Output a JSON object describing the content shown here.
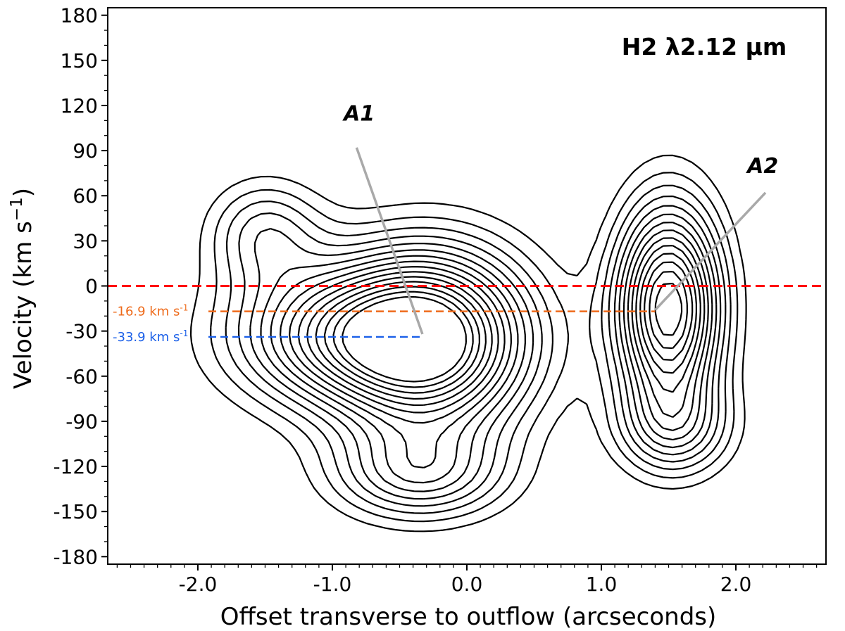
{
  "chart_data": {
    "type": "contour",
    "title": "H2 λ2.12 μm",
    "xlabel": "Offset transverse to outflow (arcseconds)",
    "ylabel_main": "Velocity (km s",
    "ylabel_exp": "−1",
    "ylabel_close": ")",
    "xlim": [
      -2.67,
      2.67
    ],
    "ylim": [
      -185,
      185
    ],
    "x_ticks": [
      {
        "value": -2.0,
        "label": "-2.0"
      },
      {
        "value": -1.0,
        "label": "-1.0"
      },
      {
        "value": 0.0,
        "label": "0.0"
      },
      {
        "value": 1.0,
        "label": "1.0"
      },
      {
        "value": 2.0,
        "label": "2.0"
      }
    ],
    "y_ticks": [
      {
        "value": 180,
        "label": "180"
      },
      {
        "value": 150,
        "label": "150"
      },
      {
        "value": 120,
        "label": "120"
      },
      {
        "value": 90,
        "label": "90"
      },
      {
        "value": 60,
        "label": "60"
      },
      {
        "value": 30,
        "label": "30"
      },
      {
        "value": 0,
        "label": "0"
      },
      {
        "value": -30,
        "label": "-30"
      },
      {
        "value": -60,
        "label": "-60"
      },
      {
        "value": -90,
        "label": "-90"
      },
      {
        "value": -120,
        "label": "-120"
      },
      {
        "value": -150,
        "label": "-150"
      },
      {
        "value": -180,
        "label": "-180"
      }
    ],
    "x_minor_step": 0.1,
    "y_minor_step": 10,
    "grid": false,
    "contour_levels": 15,
    "emission_peaks": [
      {
        "x": -0.28,
        "v": -36,
        "sx": 0.52,
        "sv": 42,
        "amp": 1.0
      },
      {
        "x": 1.5,
        "v": -15,
        "sx": 0.27,
        "sv": 48,
        "amp": 0.95
      },
      {
        "x": -1.05,
        "v": -33,
        "sx": 0.55,
        "sv": 32,
        "amp": 0.5
      },
      {
        "x": -1.5,
        "v": 35,
        "sx": 0.3,
        "sv": 25,
        "amp": 0.3
      },
      {
        "x": -0.35,
        "v": -125,
        "sx": 0.45,
        "sv": 22,
        "amp": 0.4
      },
      {
        "x": 1.55,
        "v": -95,
        "sx": 0.3,
        "sv": 22,
        "amp": 0.3
      }
    ],
    "reference_lines": [
      {
        "value": 0,
        "color": "#ff0000",
        "label": "",
        "x_end": 2.67
      },
      {
        "value": -16.9,
        "color": "#ee6a1a",
        "label": "-16.9 km s",
        "label_exp": "-1",
        "x_end": 1.4
      },
      {
        "value": -33.9,
        "color": "#1a5fe8",
        "label": "-33.9 km s",
        "label_exp": "-1",
        "x_end": -0.33
      }
    ],
    "annotations": [
      {
        "text": "A1",
        "text_x": -0.8,
        "text_v": 110,
        "line_from": [
          -0.82,
          92
        ],
        "line_to": [
          -0.33,
          -32
        ]
      },
      {
        "text": "A2",
        "text_x": 2.2,
        "text_v": 75,
        "line_from": [
          2.22,
          62
        ],
        "line_to": [
          1.4,
          -16
        ]
      }
    ],
    "line_color": "#000000",
    "annotation_color": "#a9a9a9"
  }
}
